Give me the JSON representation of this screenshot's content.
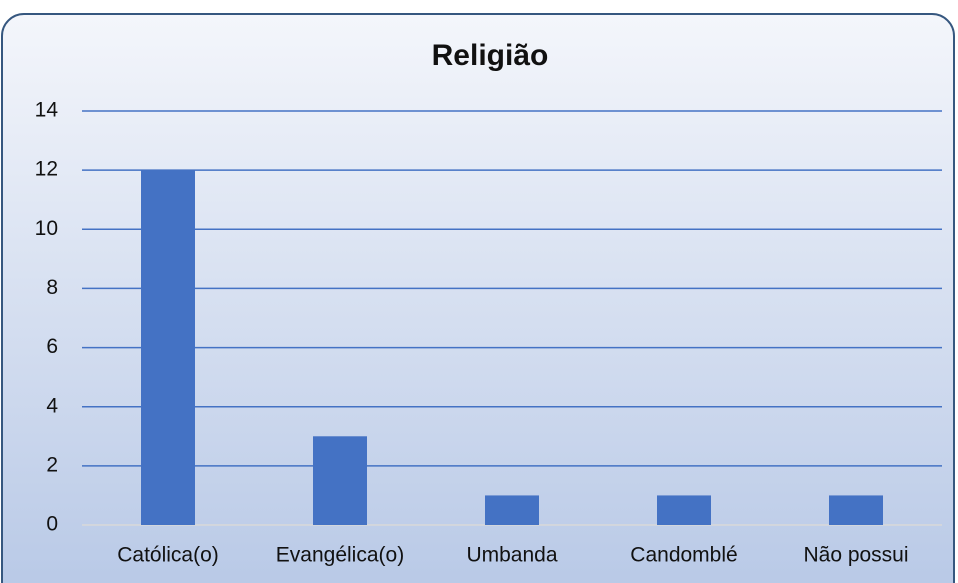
{
  "chart_data": {
    "type": "bar",
    "title": "Religião",
    "categories": [
      "Católica(o)",
      "Evangélica(o)",
      "Umbanda",
      "Candomblé",
      "Não possui"
    ],
    "values": [
      12,
      3,
      1,
      1,
      1
    ],
    "color": "#4472c4",
    "ylim": [
      0,
      14
    ],
    "yticks": [
      0,
      2,
      4,
      6,
      8,
      10,
      12,
      14
    ],
    "grid": true
  }
}
